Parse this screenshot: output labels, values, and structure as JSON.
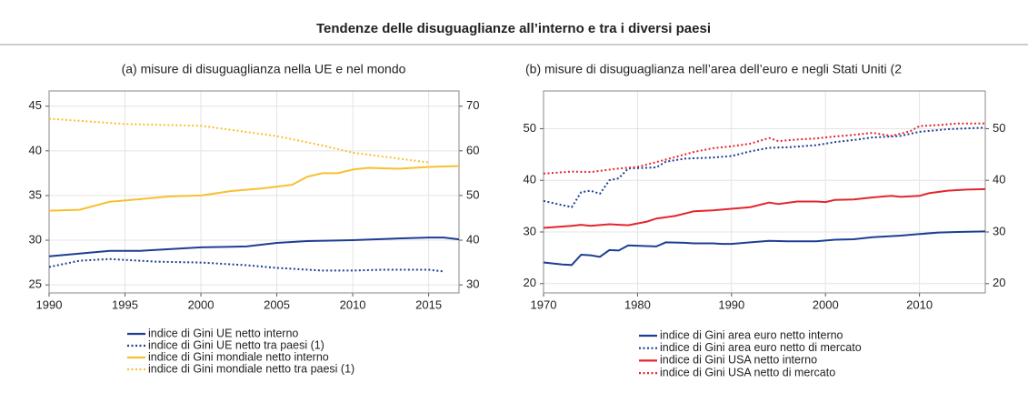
{
  "title": "Tendenze delle disuguaglianze all’interno e tra i diversi paesi",
  "chart_data": [
    {
      "type": "line",
      "title": "(a) misure di disuguaglianza nella UE e nel mondo",
      "xlim": [
        1990,
        2017
      ],
      "xticks": [
        1990,
        1995,
        2000,
        2005,
        2010,
        2015
      ],
      "ylim": [
        24.1,
        46.7
      ],
      "yticks": [
        25,
        30,
        35,
        40,
        45
      ],
      "y2lim": [
        28.2,
        73.4
      ],
      "y2ticks": [
        30,
        40,
        50,
        60,
        70
      ],
      "grid": true,
      "series": [
        {
          "name": "indice di Gini UE netto interno",
          "color": "#1c3f94",
          "line_style": "solid",
          "axis": "y",
          "x": [
            1990,
            1992,
            1994,
            1996,
            1997,
            2000,
            2003,
            2005,
            2007,
            2010,
            2013,
            2015,
            2016,
            2017
          ],
          "values": [
            28.2,
            28.5,
            28.8,
            28.8,
            28.9,
            29.2,
            29.3,
            29.7,
            29.9,
            30.0,
            30.2,
            30.3,
            30.3,
            30.1
          ]
        },
        {
          "name": "indice di Gini UE netto tra paesi (1)",
          "color": "#1c3f94",
          "line_style": "dotted",
          "axis": "y",
          "x": [
            1990,
            1992,
            1994,
            1997,
            2000,
            2003,
            2005,
            2008,
            2010,
            2012,
            2015,
            2016
          ],
          "values": [
            27.0,
            27.7,
            27.9,
            27.6,
            27.5,
            27.2,
            26.9,
            26.6,
            26.6,
            26.7,
            26.7,
            26.5
          ]
        },
        {
          "name": "indice di Gini mondiale netto interno",
          "color": "#f7c02e",
          "line_style": "solid",
          "axis": "y",
          "x": [
            1990,
            1992,
            1994,
            1996,
            1998,
            2000,
            2002,
            2004,
            2006,
            2007,
            2008,
            2009,
            2010,
            2011,
            2013,
            2015,
            2017
          ],
          "values": [
            33.3,
            33.4,
            34.3,
            34.6,
            34.9,
            35.0,
            35.5,
            35.8,
            36.2,
            37.1,
            37.5,
            37.5,
            37.9,
            38.1,
            38.0,
            38.2,
            38.3
          ]
        },
        {
          "name": "indice di Gini mondiale netto tra paesi (1)",
          "color": "#f7c02e",
          "line_style": "dotted",
          "axis": "y2",
          "x": [
            1990,
            1995,
            2000,
            2005,
            2008,
            2010,
            2015
          ],
          "values": [
            67.2,
            66.0,
            65.6,
            63.3,
            61.2,
            59.6,
            57.4
          ]
        }
      ]
    },
    {
      "type": "line",
      "title": "(b) misure di disuguaglianza nell’area dell’euro e negli Stati Uniti (2",
      "xlim": [
        1970,
        2017
      ],
      "xticks": [
        1970,
        1980,
        1990,
        2000,
        2010
      ],
      "ylim": [
        18.2,
        57.3
      ],
      "yticks": [
        20,
        30,
        40,
        50
      ],
      "y2lim": [
        18.2,
        57.3
      ],
      "y2ticks": [
        20,
        30,
        40,
        50
      ],
      "grid": true,
      "series": [
        {
          "name": "indice di Gini area euro netto interno",
          "color": "#1c3f94",
          "line_style": "solid",
          "axis": "y",
          "x": [
            1970,
            1972,
            1973,
            1974,
            1975,
            1976,
            1977,
            1978,
            1979,
            1982,
            1983,
            1985,
            1986,
            1988,
            1989,
            1990,
            1992,
            1994,
            1996,
            1999,
            2001,
            2003,
            2005,
            2008,
            2010,
            2012,
            2014,
            2017
          ],
          "values": [
            24.1,
            23.7,
            23.6,
            25.6,
            25.5,
            25.2,
            26.5,
            26.4,
            27.4,
            27.2,
            28.0,
            27.9,
            27.8,
            27.8,
            27.7,
            27.7,
            28.0,
            28.3,
            28.2,
            28.2,
            28.5,
            28.6,
            29.0,
            29.3,
            29.6,
            29.9,
            30.0,
            30.1
          ]
        },
        {
          "name": "indice di Gini area euro netto di mercato",
          "color": "#1c3f94",
          "line_style": "dotted",
          "axis": "y",
          "x": [
            1970,
            1972,
            1973,
            1974,
            1975,
            1976,
            1977,
            1978,
            1979,
            1982,
            1983,
            1985,
            1988,
            1990,
            1992,
            1994,
            1996,
            1999,
            2001,
            2003,
            2005,
            2008,
            2010,
            2013,
            2017
          ],
          "values": [
            36.0,
            35.2,
            34.8,
            37.7,
            38.0,
            37.4,
            40.0,
            40.4,
            42.3,
            42.5,
            43.6,
            44.2,
            44.4,
            44.7,
            45.6,
            46.3,
            46.4,
            46.8,
            47.4,
            47.8,
            48.3,
            48.6,
            49.4,
            49.9,
            50.2
          ]
        },
        {
          "name": "indice di Gini USA netto interno",
          "color": "#e3262e",
          "line_style": "solid",
          "axis": "y",
          "x": [
            1970,
            1973,
            1974,
            1975,
            1977,
            1979,
            1981,
            1982,
            1984,
            1986,
            1988,
            1990,
            1992,
            1994,
            1995,
            1997,
            1999,
            2000,
            2001,
            2003,
            2005,
            2007,
            2008,
            2010,
            2011,
            2013,
            2015,
            2017
          ],
          "values": [
            30.8,
            31.2,
            31.4,
            31.2,
            31.5,
            31.3,
            32.0,
            32.6,
            33.1,
            34.0,
            34.2,
            34.5,
            34.8,
            35.7,
            35.4,
            35.9,
            35.9,
            35.8,
            36.2,
            36.3,
            36.7,
            37.0,
            36.8,
            37.0,
            37.5,
            38.0,
            38.2,
            38.3
          ]
        },
        {
          "name": "indice di Gini USA netto di mercato",
          "color": "#e3262e",
          "line_style": "dotted",
          "axis": "y",
          "x": [
            1970,
            1973,
            1975,
            1978,
            1980,
            1983,
            1986,
            1988,
            1990,
            1992,
            1994,
            1995,
            1997,
            1999,
            2001,
            2003,
            2005,
            2007,
            2009,
            2010,
            2012,
            2014,
            2017
          ],
          "values": [
            41.3,
            41.7,
            41.6,
            42.3,
            42.6,
            44.0,
            45.5,
            46.2,
            46.6,
            47.1,
            48.2,
            47.6,
            47.9,
            48.1,
            48.5,
            48.8,
            49.2,
            48.6,
            49.5,
            50.5,
            50.7,
            51.0,
            51.0
          ]
        }
      ]
    }
  ]
}
